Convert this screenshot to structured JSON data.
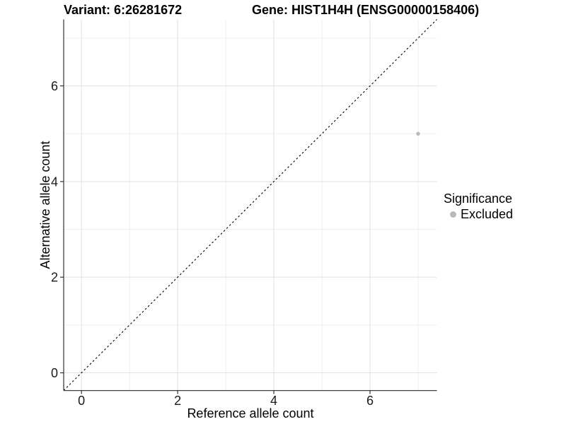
{
  "header": {
    "variant_title": "Variant: 6:26281672",
    "gene_title": "Gene: HIST1H4H (ENSG00000158406)"
  },
  "chart_data": {
    "type": "scatter",
    "title": "Variant: 6:26281672 / Gene: HIST1H4H (ENSG00000158406)",
    "xlabel": "Reference allele count",
    "ylabel": "Alternative allele count",
    "xlim": [
      -0.37,
      7.39
    ],
    "ylim": [
      -0.37,
      7.39
    ],
    "x_major_ticks": [
      0,
      2,
      4,
      6
    ],
    "y_major_ticks": [
      0,
      2,
      4,
      6
    ],
    "x_minor_ticks": [
      1,
      3,
      5,
      7
    ],
    "y_minor_ticks": [
      1,
      3,
      5,
      7
    ],
    "grid": true,
    "identity_line": {
      "slope": 1,
      "intercept": 0,
      "style": "dashed",
      "color": "#000000"
    },
    "series": [
      {
        "name": "Excluded",
        "color": "#b9b9b9",
        "points": [
          {
            "x": 7,
            "y": 5
          }
        ]
      }
    ],
    "legend": {
      "title": "Significance",
      "position": "right",
      "items": [
        {
          "label": "Excluded",
          "color": "#b9b9b9"
        }
      ]
    },
    "colors": {
      "background": "#ffffff",
      "axis_line": "#404040",
      "tick_mark": "#333333",
      "tick_label": "#1a1a1a",
      "major_grid": "#e3e3e3",
      "minor_grid": "#eeeeee"
    }
  }
}
